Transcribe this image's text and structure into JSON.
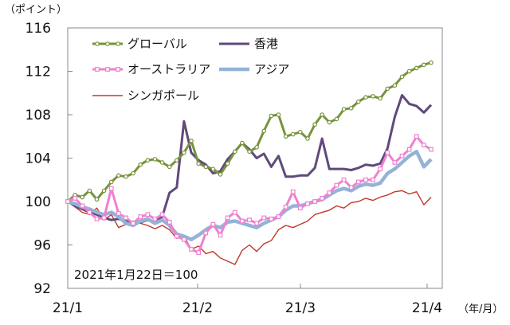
{
  "y_unit_label": "（ポイント）",
  "x_unit_label": "（年/月）",
  "annotation": "2021年1月22日＝100",
  "chart_data": {
    "type": "line",
    "xlabel": "",
    "ylabel": "",
    "x_ticks": [
      "21/1",
      "21/2",
      "21/3",
      "21/4"
    ],
    "y_ticks": [
      92,
      96,
      100,
      104,
      108,
      112,
      116
    ],
    "xlim": [
      0,
      100
    ],
    "ylim": [
      92,
      116
    ],
    "grid": false,
    "legend_placement": "top-left",
    "x": [
      0,
      2,
      4,
      6,
      8,
      10,
      12,
      14,
      16,
      18,
      20,
      22,
      24,
      26,
      28,
      30,
      32,
      34,
      36,
      38,
      40,
      42,
      44,
      46,
      48,
      50,
      52,
      54,
      56,
      58,
      60,
      62,
      64,
      66,
      68,
      70,
      72,
      74,
      76,
      78,
      80,
      82,
      84,
      86,
      88,
      90,
      92,
      94,
      96,
      98,
      100
    ],
    "series": [
      {
        "name": "グローバル",
        "color": "#77933c",
        "marker": "circle",
        "values": [
          100.0,
          100.6,
          100.4,
          101.0,
          100.2,
          101.0,
          101.8,
          102.4,
          102.3,
          102.6,
          103.4,
          103.8,
          103.9,
          103.6,
          103.2,
          103.8,
          104.5,
          105.6,
          103.5,
          103.2,
          103.0,
          102.5,
          103.5,
          104.6,
          105.4,
          104.6,
          105.0,
          106.5,
          107.9,
          108.0,
          106.0,
          106.2,
          106.4,
          105.8,
          107.1,
          108.0,
          107.3,
          107.6,
          108.5,
          108.6,
          109.2,
          109.6,
          109.7,
          109.5,
          110.4,
          110.7,
          111.5,
          112.0,
          112.3,
          112.6,
          112.8
        ]
      },
      {
        "name": "香港",
        "color": "#604a7b",
        "marker": "none",
        "values": [
          100.0,
          99.6,
          99.3,
          99.0,
          98.8,
          98.5,
          98.3,
          98.4,
          98.2,
          98.0,
          98.1,
          98.3,
          98.1,
          98.6,
          100.8,
          101.3,
          107.4,
          104.5,
          103.8,
          103.4,
          102.6,
          102.8,
          103.9,
          104.6,
          105.4,
          104.8,
          104.0,
          104.4,
          103.2,
          104.2,
          102.3,
          102.3,
          102.4,
          102.4,
          103.1,
          105.8,
          103.0,
          103.0,
          103.0,
          102.9,
          103.1,
          103.4,
          103.3,
          103.5,
          104.9,
          107.8,
          109.8,
          109.0,
          108.8,
          108.2,
          108.9
        ]
      },
      {
        "name": "オーストラリア",
        "color": "#f080d0",
        "marker": "square",
        "values": [
          100.0,
          100.3,
          99.6,
          99.0,
          98.4,
          98.5,
          101.2,
          98.9,
          98.5,
          98.0,
          98.6,
          98.8,
          98.4,
          98.8,
          98.1,
          96.8,
          96.5,
          95.6,
          95.3,
          97.1,
          97.9,
          96.9,
          98.5,
          99.0,
          98.2,
          98.3,
          98.0,
          98.5,
          98.4,
          98.6,
          99.5,
          100.9,
          99.4,
          99.8,
          100.0,
          100.3,
          100.8,
          101.5,
          102.0,
          101.3,
          101.8,
          102.0,
          102.0,
          103.0,
          104.5,
          103.6,
          104.2,
          104.8,
          106.0,
          105.2,
          104.8
        ]
      },
      {
        "name": "アジア",
        "color": "#95b3d7",
        "marker": "none",
        "values": [
          100.0,
          99.8,
          99.5,
          99.3,
          99.0,
          98.8,
          99.0,
          98.6,
          98.0,
          97.8,
          98.2,
          98.4,
          98.0,
          98.3,
          97.8,
          97.0,
          96.8,
          96.5,
          96.9,
          97.4,
          97.8,
          97.6,
          98.1,
          98.2,
          98.0,
          97.8,
          97.6,
          98.0,
          98.3,
          98.6,
          99.2,
          99.6,
          99.6,
          99.8,
          100.0,
          100.2,
          100.6,
          101.0,
          101.2,
          101.0,
          101.4,
          101.6,
          101.5,
          101.7,
          102.6,
          103.0,
          103.6,
          104.2,
          104.6,
          103.2,
          103.9
        ]
      },
      {
        "name": "シンガポール",
        "color": "#c0392b",
        "marker": "none",
        "values": [
          100.0,
          99.5,
          99.0,
          98.8,
          99.4,
          98.3,
          98.8,
          97.6,
          97.9,
          98.2,
          98.0,
          97.8,
          97.5,
          97.8,
          97.4,
          96.6,
          96.8,
          95.6,
          95.9,
          95.2,
          95.4,
          94.8,
          94.5,
          94.2,
          95.5,
          96.0,
          95.4,
          96.1,
          96.4,
          97.4,
          97.8,
          97.6,
          97.9,
          98.2,
          98.8,
          99.0,
          99.2,
          99.6,
          99.4,
          99.9,
          100.0,
          100.3,
          100.1,
          100.4,
          100.6,
          100.9,
          101.0,
          100.7,
          100.9,
          99.7,
          100.4
        ]
      }
    ]
  }
}
